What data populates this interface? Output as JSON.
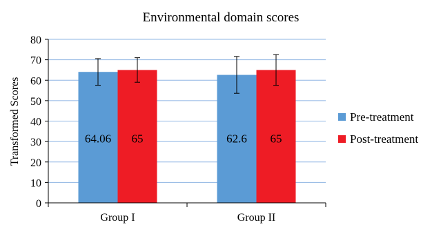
{
  "chart_data": {
    "type": "bar",
    "title": "Environmental domain scores",
    "xlabel": "",
    "ylabel": "Transformed Scores",
    "ylim": [
      0,
      80
    ],
    "yticks": [
      0,
      10,
      20,
      30,
      40,
      50,
      60,
      70,
      80
    ],
    "grid": true,
    "legend_position": "right",
    "categories": [
      "Group I",
      "Group II"
    ],
    "series": [
      {
        "name": "Pre-treatment",
        "color": "#5b9bd5",
        "values": [
          64.06,
          62.6
        ],
        "errors": [
          6.5,
          9.0
        ],
        "labels": [
          "64.06",
          "62.6"
        ]
      },
      {
        "name": "Post-treatment",
        "color": "#ee1c25",
        "values": [
          65,
          65
        ],
        "errors": [
          6.0,
          7.5
        ],
        "labels": [
          "65",
          "65"
        ]
      }
    ]
  }
}
